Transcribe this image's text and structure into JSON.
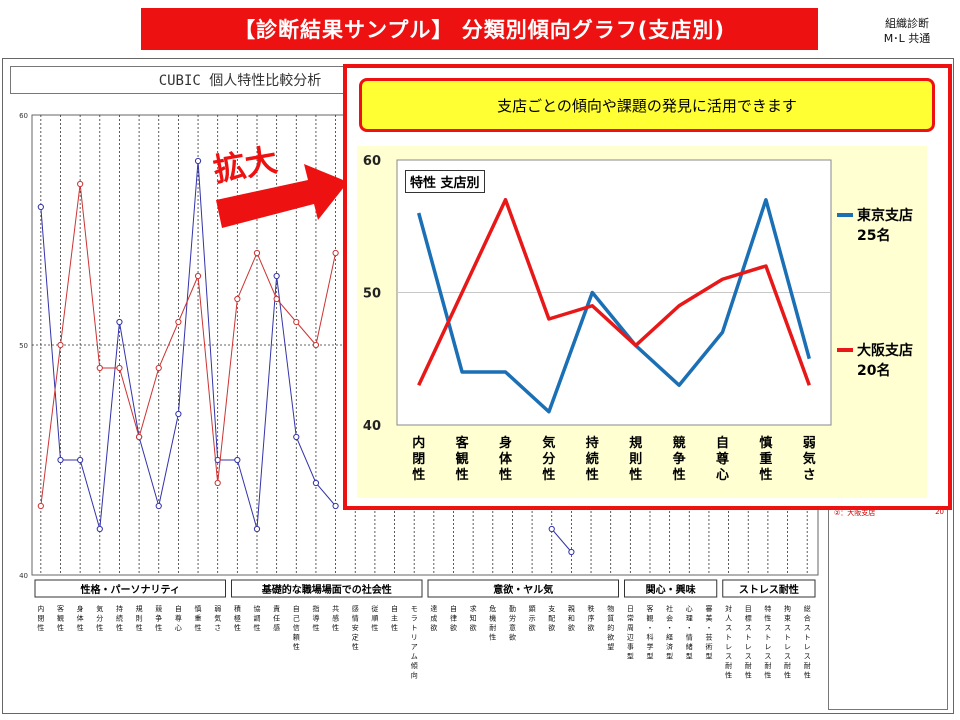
{
  "header": {
    "title": "【診断結果サンプル】 分類別傾向グラフ(支店別)",
    "note_line1": "組織診断",
    "note_line2": "M･L 共通"
  },
  "background_report": {
    "title": "CUBIC 個人特性比較分析",
    "category_headers": [
      "性格・パーソナリティ",
      "基礎的な職場場面での社会性",
      "意欲・ヤル気",
      "関心・興味",
      "ストレス耐性"
    ],
    "column_labels": [
      "内閉性",
      "客観性",
      "身体性",
      "気分性",
      "持続性",
      "規則性",
      "競争性",
      "自尊心",
      "慎重性",
      "弱気さ",
      "積極性",
      "協調性",
      "責任感",
      "自己信頼性",
      "指導性",
      "共感性",
      "感情安定性",
      "従順性",
      "自主性",
      "モラトリアム傾向",
      "達成欲",
      "自律欲",
      "求知欲",
      "危機耐性",
      "勤労意欲",
      "顕示欲",
      "支配欲",
      "親和欲",
      "秩序欲",
      "物質的欲望",
      "日常周辺事型",
      "客観・科学型",
      "社会・経済型",
      "心理・情緒型",
      "審美・芸術型",
      "対人ストレス耐性",
      "目標ストレス耐性",
      "特性ストレス耐性",
      "拘束ストレス耐性",
      "総合ストレス耐性"
    ],
    "legend_item": "②：大阪支店",
    "legend_item_value": "20"
  },
  "zoom_callout": {
    "label": "拡大",
    "banner": "支店ごとの傾向や課題の発見に活用できます"
  },
  "colors": {
    "tokyo": "#1a6fb5",
    "osaka": "#e81818",
    "accent_red": "#ee1111",
    "banner_yellow": "#ffff33"
  },
  "chart_data": [
    {
      "type": "line",
      "title": "特性 支店別",
      "categories": [
        "内閉性",
        "客観性",
        "身体性",
        "気分性",
        "持続性",
        "規則性",
        "競争性",
        "自尊心",
        "慎重性",
        "弱気さ"
      ],
      "ylim": [
        40,
        60
      ],
      "yticks": [
        40,
        50,
        60
      ],
      "grid": "horizontal",
      "legend": "right",
      "series": [
        {
          "name": "東京支店",
          "count": "25名",
          "color": "#1a6fb5",
          "values": [
            56,
            44,
            44,
            41,
            50,
            46,
            43,
            47,
            57,
            45
          ]
        },
        {
          "name": "大阪支店",
          "count": "20名",
          "color": "#e81818",
          "values": [
            43,
            50,
            57,
            48,
            49,
            46,
            49,
            51,
            52,
            43
          ]
        }
      ]
    },
    {
      "type": "line",
      "title": "CUBIC 個人特性比較分析",
      "ylim": [
        40,
        60
      ],
      "yticks": [
        40,
        50,
        60
      ],
      "legend": "bottom-right",
      "series": [
        {
          "name": "東京支店",
          "color": "#3333aa",
          "values": [
            56,
            45,
            45,
            42,
            51,
            46,
            43,
            47,
            58,
            45,
            45,
            42,
            53,
            46,
            44,
            43,
            null,
            null,
            null,
            null,
            null,
            null,
            null,
            null,
            null,
            null,
            42,
            41,
            null,
            null,
            null,
            null,
            null,
            null,
            null,
            null,
            null,
            null,
            null,
            null
          ]
        },
        {
          "name": "大阪支店",
          "color": "#cc3333",
          "values": [
            43,
            50,
            57,
            49,
            49,
            46,
            49,
            51,
            53,
            44,
            52,
            54,
            52,
            51,
            50,
            54,
            null,
            null,
            null,
            null,
            null,
            null,
            null,
            null,
            null,
            null,
            null,
            null,
            null,
            null,
            null,
            null,
            null,
            null,
            null,
            null,
            null,
            null,
            null,
            null
          ]
        }
      ]
    }
  ]
}
